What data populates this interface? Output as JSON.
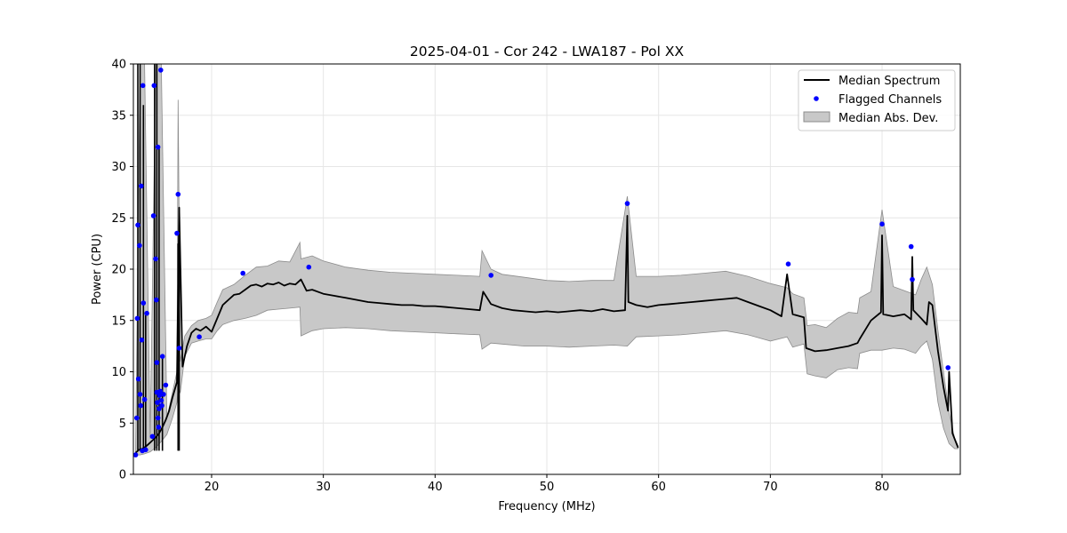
{
  "chart_data": {
    "type": "line",
    "title": "2025-04-01 - Cor 242 - LWA187 - Pol XX",
    "xlabel": "Frequency (MHz)",
    "ylabel": "Power (CPU)",
    "xlim": [
      13,
      87
    ],
    "ylim": [
      0,
      40
    ],
    "xticks": [
      20,
      30,
      40,
      50,
      60,
      70,
      80
    ],
    "xtick_labels": [
      "20",
      "30",
      "40",
      "50",
      "60",
      "70",
      "80"
    ],
    "yticks": [
      0,
      5,
      10,
      15,
      20,
      25,
      30,
      35,
      40
    ],
    "ytick_labels": [
      "0",
      "5",
      "10",
      "15",
      "20",
      "25",
      "30",
      "35",
      "40"
    ],
    "grid": true,
    "legend_position": "top-right",
    "colors": {
      "median": "#000000",
      "flagged": "#0000ff",
      "mad_fill": "#c8c8c8",
      "mad_edge": "#8c8c8c"
    },
    "series": [
      {
        "name": "Median Spectrum",
        "kind": "line",
        "x": [
          13.2,
          13.5,
          13.8,
          14.1,
          14.4,
          14.7,
          15.0,
          15.3,
          15.6,
          15.9,
          16.2,
          16.5,
          16.9,
          17.1,
          17.4,
          17.8,
          18.2,
          18.6,
          19.0,
          19.5,
          20.0,
          20.5,
          21.0,
          21.5,
          22.0,
          22.5,
          23.0,
          23.5,
          24.0,
          24.5,
          25.0,
          25.5,
          26.0,
          26.5,
          27.0,
          27.5,
          28.0,
          28.5,
          29.0,
          30.0,
          31.0,
          32.0,
          33.0,
          34.0,
          35.0,
          36.0,
          37.0,
          38.0,
          39.0,
          40.0,
          41.0,
          42.0,
          43.0,
          44.0,
          44.3,
          45.0,
          46.0,
          47.0,
          48.0,
          49.0,
          50.0,
          51.0,
          52.0,
          53.0,
          54.0,
          55.0,
          56.0,
          57.0,
          57.2,
          57.3,
          58.0,
          59.0,
          60.0,
          61.0,
          62.0,
          63.0,
          64.0,
          65.0,
          66.0,
          67.0,
          68.0,
          69.0,
          70.0,
          71.0,
          71.5,
          72.0,
          73.0,
          73.2,
          74.0,
          75.0,
          76.0,
          77.0,
          77.8,
          78.0,
          79.0,
          79.9,
          80.0,
          80.1,
          81.0,
          82.0,
          82.6,
          82.7,
          82.8,
          83.5,
          84.0,
          84.2,
          84.5,
          85.0,
          85.5,
          85.9,
          86.0,
          86.3,
          86.8
        ],
        "y": [
          2.1,
          2.4,
          2.5,
          2.7,
          3.0,
          3.3,
          3.6,
          4.0,
          4.6,
          5.3,
          6.2,
          7.5,
          9.0,
          26.0,
          10.5,
          12.5,
          13.8,
          14.2,
          14.0,
          14.4,
          13.9,
          15.2,
          16.5,
          17.0,
          17.5,
          17.6,
          18.0,
          18.4,
          18.5,
          18.3,
          18.6,
          18.5,
          18.7,
          18.4,
          18.6,
          18.5,
          19.0,
          17.9,
          18.0,
          17.6,
          17.4,
          17.2,
          17.0,
          16.8,
          16.7,
          16.6,
          16.5,
          16.5,
          16.4,
          16.4,
          16.3,
          16.2,
          16.1,
          16.0,
          17.8,
          16.6,
          16.2,
          16.0,
          15.9,
          15.8,
          15.9,
          15.8,
          15.9,
          16.0,
          15.9,
          16.1,
          15.9,
          16.0,
          25.2,
          16.8,
          16.5,
          16.3,
          16.5,
          16.6,
          16.7,
          16.8,
          16.9,
          17.0,
          17.1,
          17.2,
          16.8,
          16.4,
          16.0,
          15.4,
          19.5,
          15.6,
          15.3,
          12.3,
          12.0,
          12.1,
          12.3,
          12.5,
          12.8,
          13.2,
          15.0,
          15.8,
          23.3,
          15.6,
          15.4,
          15.6,
          15.1,
          21.2,
          16.0,
          15.2,
          14.6,
          16.8,
          16.5,
          12.0,
          8.5,
          6.2,
          10.0,
          4.0,
          2.6
        ],
        "spikes": [
          {
            "x": 13.4,
            "y": 40.0
          },
          {
            "x": 13.6,
            "y": 40.0
          },
          {
            "x": 13.9,
            "y": 36.0
          },
          {
            "x": 14.1,
            "y": 15.5
          },
          {
            "x": 14.9,
            "y": 40.0
          },
          {
            "x": 15.1,
            "y": 40.0
          },
          {
            "x": 15.3,
            "y": 32.0
          },
          {
            "x": 15.6,
            "y": 11.5
          },
          {
            "x": 17.0,
            "y": 22.5
          },
          {
            "x": 17.1,
            "y": 26.0
          }
        ]
      },
      {
        "name": "Flagged Channels",
        "kind": "scatter",
        "points": [
          {
            "x": 13.2,
            "y": 1.9
          },
          {
            "x": 13.3,
            "y": 5.5
          },
          {
            "x": 13.35,
            "y": 15.2
          },
          {
            "x": 13.4,
            "y": 24.3
          },
          {
            "x": 13.45,
            "y": 9.3
          },
          {
            "x": 13.55,
            "y": 22.3
          },
          {
            "x": 13.6,
            "y": 7.8
          },
          {
            "x": 13.65,
            "y": 6.7
          },
          {
            "x": 13.7,
            "y": 28.1
          },
          {
            "x": 13.75,
            "y": 13.1
          },
          {
            "x": 13.8,
            "y": 2.3
          },
          {
            "x": 13.85,
            "y": 37.9
          },
          {
            "x": 13.9,
            "y": 16.7
          },
          {
            "x": 14.0,
            "y": 7.3
          },
          {
            "x": 14.1,
            "y": 2.4
          },
          {
            "x": 14.2,
            "y": 15.7
          },
          {
            "x": 14.7,
            "y": 3.7
          },
          {
            "x": 14.8,
            "y": 25.2
          },
          {
            "x": 14.85,
            "y": 37.9
          },
          {
            "x": 15.0,
            "y": 21.0
          },
          {
            "x": 15.05,
            "y": 17.0
          },
          {
            "x": 15.1,
            "y": 8.0
          },
          {
            "x": 15.1,
            "y": 10.9
          },
          {
            "x": 15.15,
            "y": 7.0
          },
          {
            "x": 15.2,
            "y": 31.9
          },
          {
            "x": 15.2,
            "y": 5.5
          },
          {
            "x": 15.25,
            "y": 4.6
          },
          {
            "x": 15.3,
            "y": 6.4
          },
          {
            "x": 15.35,
            "y": 7.7
          },
          {
            "x": 15.4,
            "y": 8.1
          },
          {
            "x": 15.45,
            "y": 39.4
          },
          {
            "x": 15.5,
            "y": 7.2
          },
          {
            "x": 15.55,
            "y": 6.7
          },
          {
            "x": 15.6,
            "y": 11.5
          },
          {
            "x": 15.7,
            "y": 7.8
          },
          {
            "x": 15.9,
            "y": 8.7
          },
          {
            "x": 16.9,
            "y": 23.5
          },
          {
            "x": 17.0,
            "y": 27.3
          },
          {
            "x": 17.1,
            "y": 12.3
          },
          {
            "x": 18.9,
            "y": 13.4
          },
          {
            "x": 22.8,
            "y": 19.6
          },
          {
            "x": 28.7,
            "y": 20.2
          },
          {
            "x": 45.0,
            "y": 19.4
          },
          {
            "x": 57.2,
            "y": 26.4
          },
          {
            "x": 71.6,
            "y": 20.5
          },
          {
            "x": 80.0,
            "y": 24.4
          },
          {
            "x": 82.6,
            "y": 22.2
          },
          {
            "x": 82.7,
            "y": 19.0
          },
          {
            "x": 85.9,
            "y": 10.4
          }
        ]
      },
      {
        "name": "Median Abs. Dev.",
        "kind": "band",
        "x": [
          13.2,
          13.6,
          14.0,
          14.5,
          15.0,
          15.5,
          16.0,
          16.5,
          16.9,
          17.0,
          17.2,
          17.6,
          18.2,
          18.8,
          19.5,
          20.0,
          20.5,
          21.0,
          22.0,
          23.0,
          24.0,
          25.0,
          26.0,
          27.0,
          27.9,
          28.0,
          29.0,
          30.0,
          32.0,
          34.0,
          36.0,
          38.0,
          40.0,
          42.0,
          44.0,
          44.2,
          45.0,
          46.0,
          48.0,
          50.0,
          52.0,
          54.0,
          56.0,
          57.2,
          58.0,
          60.0,
          62.0,
          64.0,
          66.0,
          68.0,
          70.0,
          71.5,
          72.0,
          73.0,
          73.3,
          74.0,
          75.0,
          76.0,
          77.0,
          77.8,
          78.0,
          79.0,
          80.0,
          81.0,
          82.0,
          83.0,
          83.5,
          84.0,
          84.5,
          85.0,
          85.5,
          86.0,
          86.5,
          86.8
        ],
        "upper": [
          2.5,
          40.0,
          40.0,
          3.5,
          40.0,
          40.0,
          5.5,
          8.0,
          10.0,
          36.5,
          11.0,
          13.5,
          14.5,
          15.0,
          15.2,
          15.5,
          16.8,
          18.0,
          18.5,
          19.4,
          20.2,
          20.3,
          20.8,
          20.7,
          22.6,
          21.0,
          21.3,
          20.8,
          20.2,
          19.9,
          19.7,
          19.6,
          19.5,
          19.4,
          19.3,
          21.8,
          20.0,
          19.5,
          19.2,
          18.9,
          18.8,
          18.9,
          18.9,
          27.1,
          19.3,
          19.3,
          19.4,
          19.6,
          19.8,
          19.3,
          18.6,
          18.2,
          17.6,
          17.2,
          14.5,
          14.6,
          14.3,
          15.2,
          15.8,
          15.7,
          17.2,
          17.8,
          25.8,
          18.3,
          17.9,
          17.5,
          19.0,
          20.2,
          18.5,
          14.0,
          10.0,
          6.0,
          3.5,
          2.8
        ],
        "lower": [
          1.9,
          1.9,
          2.0,
          2.2,
          2.6,
          3.2,
          3.9,
          5.5,
          7.0,
          8.5,
          8.0,
          11.5,
          12.8,
          13.0,
          13.2,
          13.2,
          14.0,
          14.6,
          15.0,
          15.2,
          15.5,
          16.0,
          16.1,
          16.2,
          16.3,
          13.5,
          14.0,
          14.2,
          14.3,
          14.2,
          14.0,
          13.9,
          13.8,
          13.7,
          13.6,
          12.2,
          12.8,
          12.7,
          12.5,
          12.5,
          12.4,
          12.5,
          12.6,
          12.5,
          13.4,
          13.5,
          13.6,
          13.8,
          14.0,
          13.6,
          13.0,
          13.4,
          12.4,
          12.7,
          9.8,
          9.6,
          9.4,
          10.2,
          10.4,
          10.3,
          11.8,
          12.1,
          12.1,
          12.3,
          12.2,
          11.8,
          12.5,
          13.0,
          11.2,
          7.0,
          4.5,
          3.0,
          2.5,
          2.5
        ]
      }
    ]
  }
}
